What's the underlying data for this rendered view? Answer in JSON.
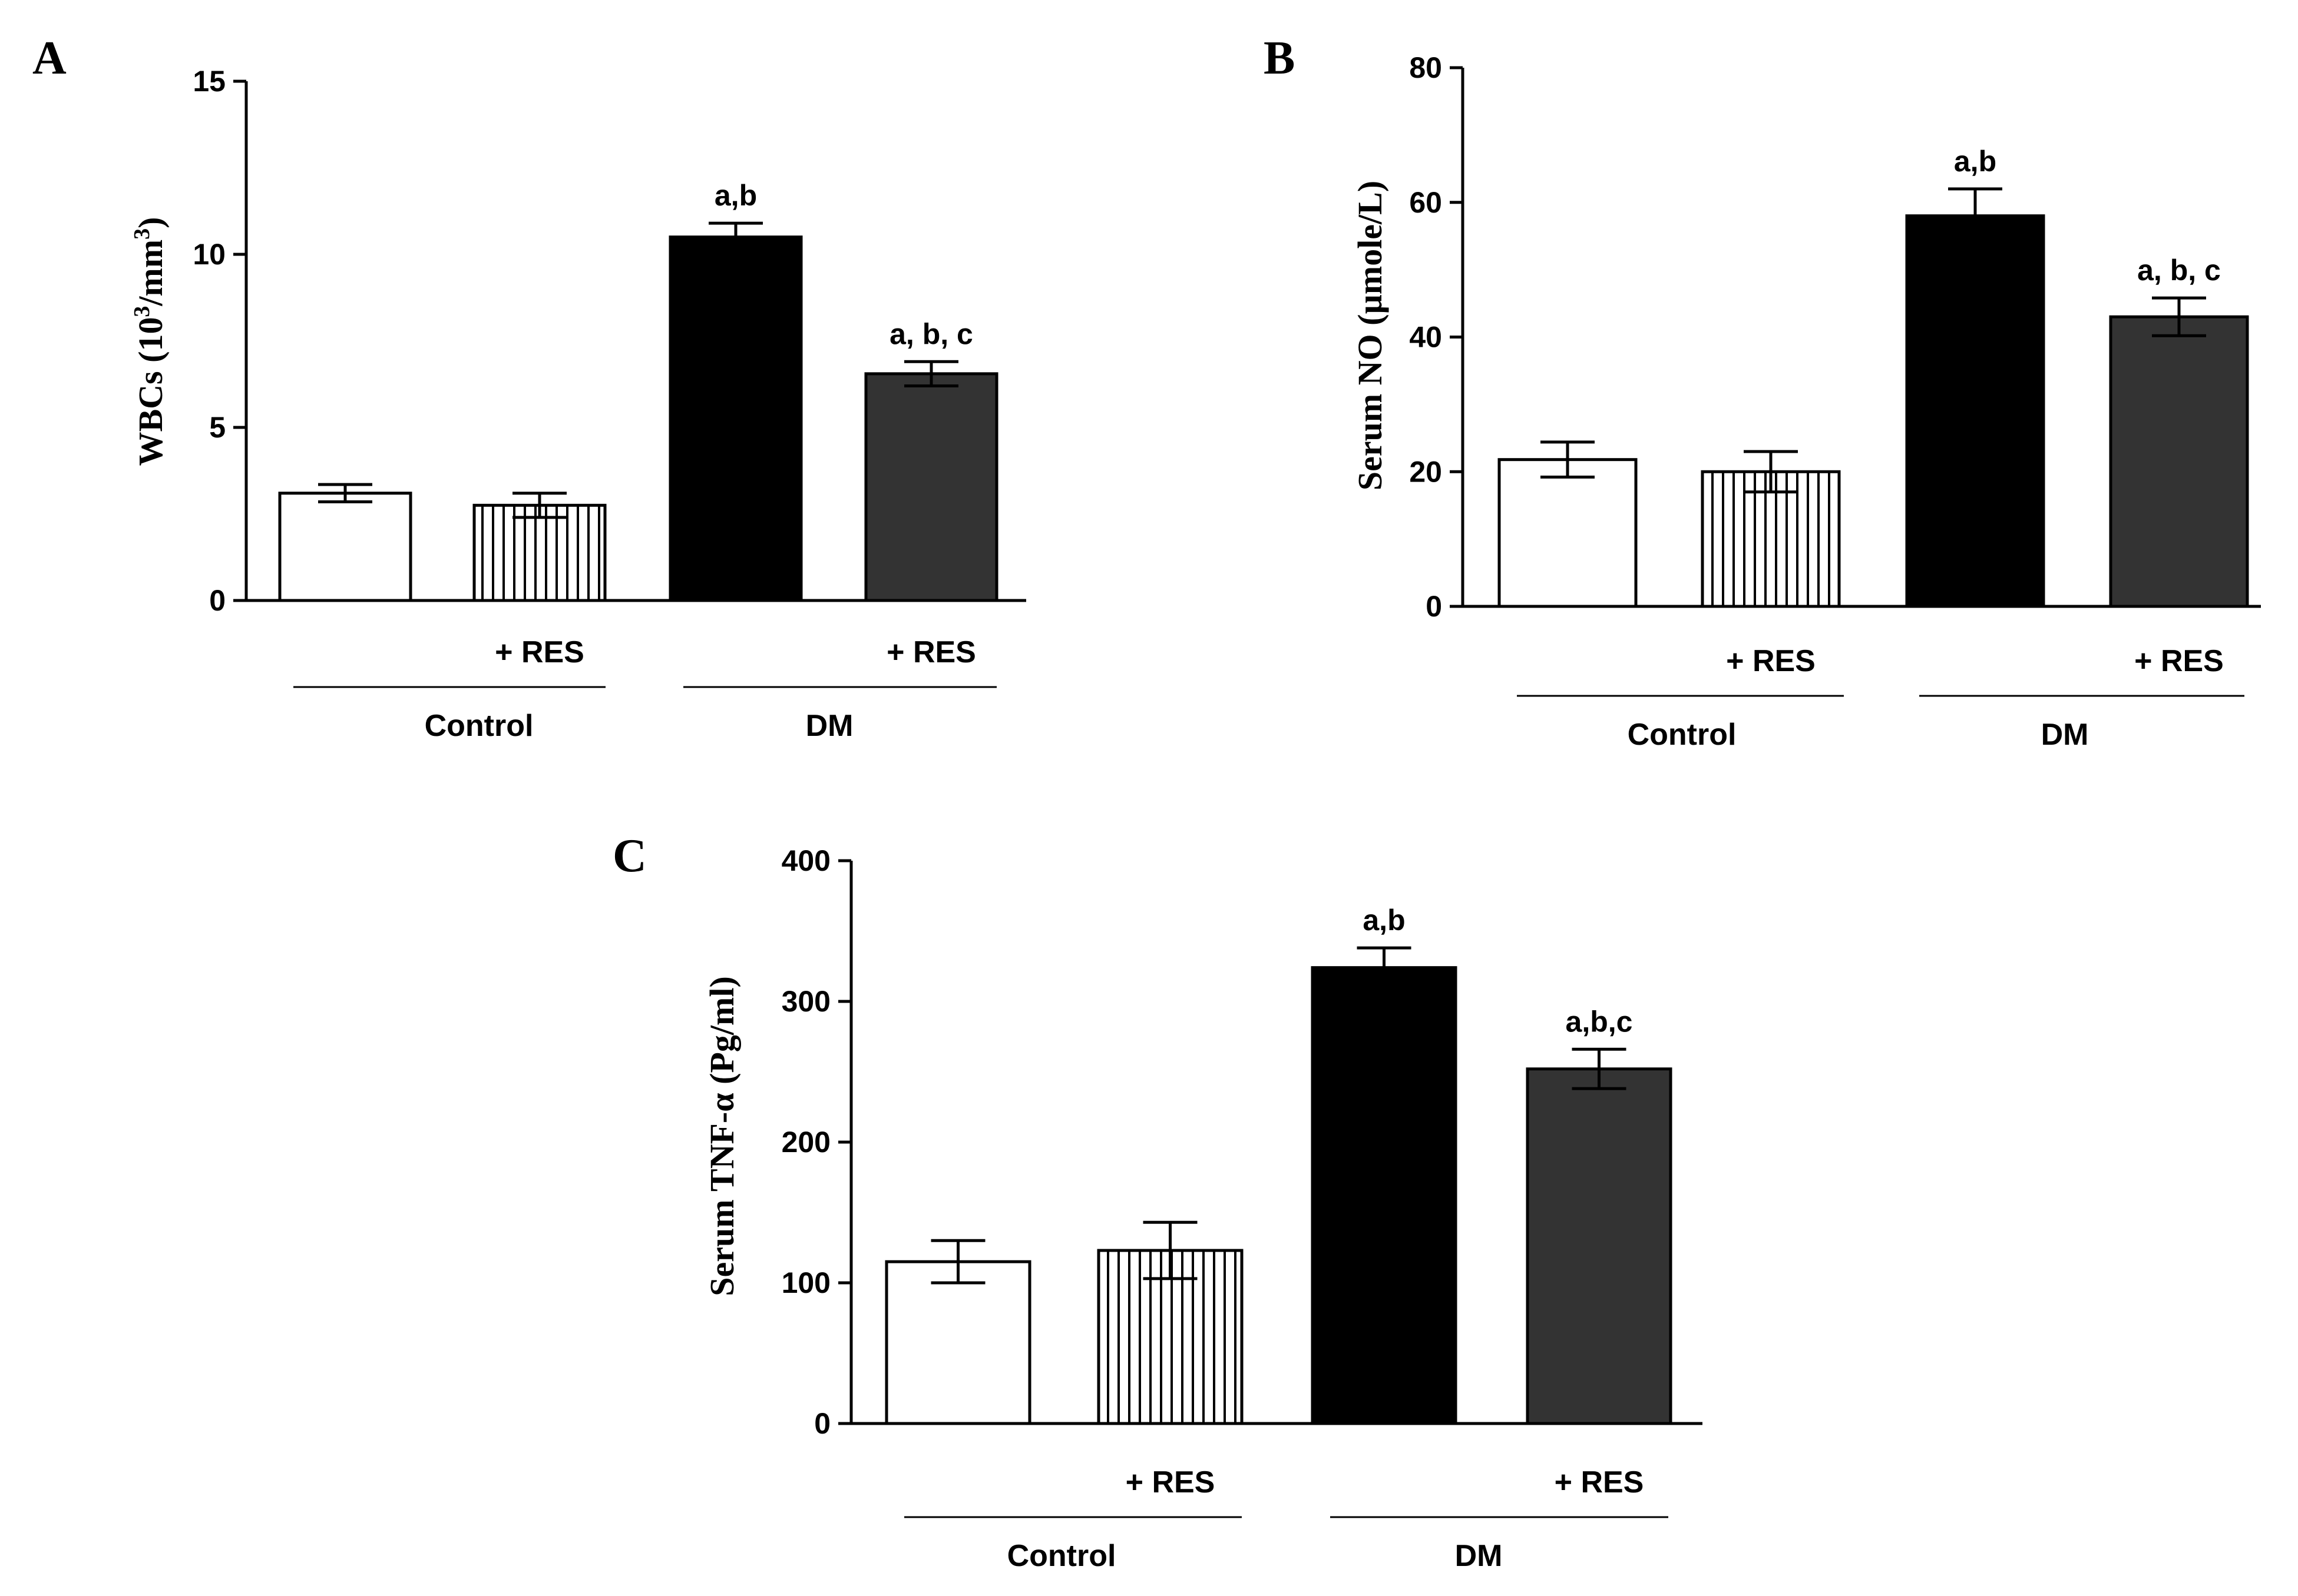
{
  "colors": {
    "control": "#ffffff",
    "control_res": "#ffffff",
    "dm": "#000000",
    "dm_res": "#333333",
    "stroke": "#000000"
  },
  "chart_data": [
    {
      "panel": "A",
      "type": "bar",
      "ylabel": "WBCs (10",
      "ylabel_sup1": "3",
      "ylabel_mid": "/mm",
      "ylabel_sup2": "3",
      "ylabel_end": ")",
      "ylim": [
        0,
        15
      ],
      "yticks": [
        0,
        5,
        10,
        15
      ],
      "categories": [
        "",
        "+ RES",
        "",
        "+ RES"
      ],
      "fills": [
        "control",
        "control_res",
        "dm",
        "dm_res"
      ],
      "values": [
        3.1,
        2.75,
        10.5,
        6.55
      ],
      "errors": [
        0.25,
        0.35,
        0.4,
        0.35
      ],
      "sig_labels": [
        "",
        "",
        "a,b",
        "a, b, c"
      ],
      "groups": [
        "Control",
        "DM"
      ]
    },
    {
      "panel": "B",
      "type": "bar",
      "ylabel": "Serum NO (µmole/L)",
      "ylim": [
        0,
        80
      ],
      "yticks": [
        0,
        20,
        40,
        60,
        80
      ],
      "categories": [
        "",
        "+ RES",
        "",
        "+ RES"
      ],
      "fills": [
        "control",
        "control_res",
        "dm",
        "dm_res"
      ],
      "values": [
        21.8,
        20.0,
        58.0,
        43.0
      ],
      "errors": [
        2.6,
        3.0,
        4.0,
        2.8
      ],
      "sig_labels": [
        "",
        "",
        "a,b",
        "a, b, c"
      ],
      "groups": [
        "Control",
        "DM"
      ]
    },
    {
      "panel": "C",
      "type": "bar",
      "ylabel": "Serum TNF-α (Pg/ml)",
      "ylim": [
        0,
        400
      ],
      "yticks": [
        0,
        100,
        200,
        300,
        400
      ],
      "categories": [
        "",
        "+ RES",
        "",
        "+ RES"
      ],
      "fills": [
        "control",
        "control_res",
        "dm",
        "dm_res"
      ],
      "values": [
        115,
        123,
        324,
        252
      ],
      "errors": [
        15,
        20,
        14,
        14
      ],
      "sig_labels": [
        "",
        "",
        "a,b",
        "a,b,c"
      ],
      "groups": [
        "Control",
        "DM"
      ]
    }
  ]
}
